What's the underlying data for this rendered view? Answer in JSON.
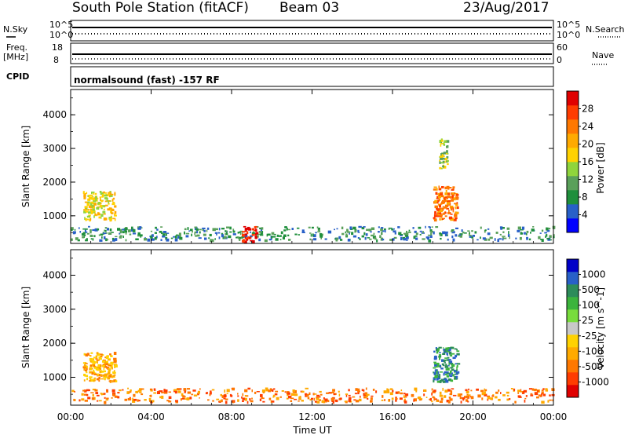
{
  "header": {
    "station": "South Pole Station (fitACF)",
    "beam": "Beam 03",
    "date": "23/Aug/2017"
  },
  "left_labels": {
    "nsky": "N.Sky",
    "nsky_top": "10^5",
    "nsky_bot": "10^0",
    "freq": "Freq.",
    "freq_unit": "[MHz]",
    "freq_top": "18",
    "freq_bot": "8",
    "cpid": "CPID"
  },
  "right_labels": {
    "nsearch": "N.Search",
    "nsearch_top": "10^5",
    "nsearch_bot": "10^0",
    "nave": "Nave",
    "nave_top": "60",
    "nave_bot": "0"
  },
  "cpid_text": "normalsound (fast) -157 RF",
  "colors": {
    "power": [
      "#0000ff",
      "#2860c8",
      "#1f8f3c",
      "#5aa05a",
      "#8fd43c",
      "#ffd200",
      "#ffaa00",
      "#ff7800",
      "#ff3c00",
      "#e00000"
    ],
    "velocity": [
      "#e00000",
      "#ff3c00",
      "#ff7800",
      "#ffaa00",
      "#ffd200",
      "#c8c8c8",
      "#78dc3c",
      "#3cb43c",
      "#2d8c5a",
      "#2860c8",
      "#0000c8"
    ]
  },
  "chart_data": [
    {
      "type": "heatmap",
      "title": "Power",
      "ylabel": "Slant Range [km]",
      "xlabel": "",
      "x_ticks": [
        "00:00",
        "04:00",
        "08:00",
        "12:00",
        "16:00",
        "20:00",
        "00:00"
      ],
      "y_ticks": [
        "1000",
        "2000",
        "3000",
        "4000"
      ],
      "ylim": [
        180,
        4750
      ],
      "xlim_hours": [
        0,
        24
      ],
      "colorbar": {
        "label": "Power [dB]",
        "range": [
          0,
          32
        ],
        "ticks": [
          "4",
          "8",
          "12",
          "16",
          "20",
          "24",
          "28"
        ]
      },
      "features": [
        {
          "x": [
            0.0,
            24.0
          ],
          "y": [
            300,
            700
          ],
          "value": 6,
          "note": "near range band"
        },
        {
          "x": [
            8.5,
            9.2
          ],
          "y": [
            250,
            700
          ],
          "value": 30
        },
        {
          "x": [
            0.6,
            2.2
          ],
          "y": [
            900,
            1750
          ],
          "value": 16
        },
        {
          "x": [
            18.0,
            19.2
          ],
          "y": [
            900,
            1900
          ],
          "value": 22
        },
        {
          "x": [
            18.3,
            18.7
          ],
          "y": [
            2400,
            3300
          ],
          "value": 14
        }
      ]
    },
    {
      "type": "heatmap",
      "title": "Velocity",
      "ylabel": "Slant Range [km]",
      "xlabel": "Time UT",
      "x_ticks": [
        "00:00",
        "04:00",
        "08:00",
        "12:00",
        "16:00",
        "20:00",
        "00:00"
      ],
      "y_ticks": [
        "1000",
        "2000",
        "3000",
        "4000"
      ],
      "ylim": [
        180,
        4750
      ],
      "xlim_hours": [
        0,
        24
      ],
      "colorbar": {
        "label": "Velocity [m s^-1]",
        "ticks": [
          "1000",
          "500",
          "100",
          "25",
          "-25",
          "-100",
          "-500",
          "-1000"
        ]
      },
      "features": [
        {
          "x": [
            0.0,
            24.0
          ],
          "y": [
            300,
            700
          ],
          "value": -300,
          "note": "near range band"
        },
        {
          "x": [
            0.6,
            2.2
          ],
          "y": [
            900,
            1750
          ],
          "value": -100
        },
        {
          "x": [
            18.0,
            19.2
          ],
          "y": [
            900,
            1900
          ],
          "value": 500
        }
      ]
    }
  ]
}
